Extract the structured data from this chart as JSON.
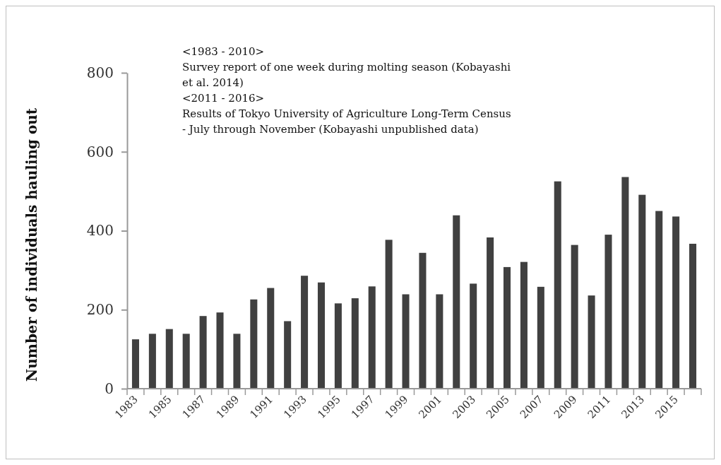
{
  "chart_data": {
    "type": "bar",
    "ylabel": "Number of individuals hauling out",
    "categories": [
      "1983",
      null,
      "1985",
      null,
      "1987",
      null,
      "1989",
      null,
      "1991",
      null,
      "1993",
      null,
      "1995",
      null,
      "1997",
      null,
      "1999",
      null,
      "2001",
      null,
      "2003",
      null,
      "2005",
      null,
      "2007",
      null,
      "2009",
      null,
      "2011",
      null,
      "2013",
      null,
      "2015",
      null
    ],
    "values": [
      125,
      139,
      151,
      139,
      184,
      193,
      139,
      226,
      255,
      171,
      286,
      269,
      216,
      229,
      259,
      377,
      239,
      344,
      239,
      439,
      266,
      383,
      308,
      321,
      258,
      525,
      364,
      236,
      390,
      536,
      491,
      450,
      436,
      367
    ],
    "color": "#404040",
    "ylim": [
      0,
      800
    ],
    "yticks": [
      0,
      200,
      400,
      600,
      800
    ],
    "grid": false,
    "annotations": [
      "<1983 - 2010>",
      "Survey report of one week during molting season (Kobayashi et al. 2014)",
      "<2011 - 2016>",
      "Results of Tokyo University of Agriculture Long-Term Census - July through November (Kobayashi unpublished data)"
    ]
  }
}
